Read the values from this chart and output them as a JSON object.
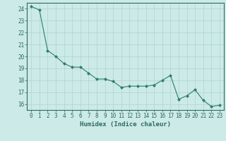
{
  "x": [
    0,
    1,
    2,
    3,
    4,
    5,
    6,
    7,
    8,
    9,
    10,
    11,
    12,
    13,
    14,
    15,
    16,
    17,
    18,
    19,
    20,
    21,
    22,
    23
  ],
  "y": [
    24.2,
    23.9,
    20.5,
    20.0,
    19.4,
    19.1,
    19.1,
    18.6,
    18.1,
    18.1,
    17.9,
    17.4,
    17.5,
    17.5,
    17.5,
    17.6,
    18.0,
    18.4,
    16.4,
    16.7,
    17.2,
    16.3,
    15.8,
    15.9
  ],
  "line_color": "#2e7d6e",
  "marker": "D",
  "marker_size": 2.0,
  "bg_color": "#cceae7",
  "grid_color": "#b0d4d0",
  "xlabel": "Humidex (Indice chaleur)",
  "xlim": [
    -0.5,
    23.5
  ],
  "ylim": [
    15.5,
    24.5
  ],
  "yticks": [
    16,
    17,
    18,
    19,
    20,
    21,
    22,
    23,
    24
  ],
  "xticks": [
    0,
    1,
    2,
    3,
    4,
    5,
    6,
    7,
    8,
    9,
    10,
    11,
    12,
    13,
    14,
    15,
    16,
    17,
    18,
    19,
    20,
    21,
    22,
    23
  ],
  "tick_color": "#2e6b5e",
  "axis_color": "#2e6b5e",
  "label_fontsize": 6.5,
  "tick_fontsize": 5.5,
  "linewidth": 0.8
}
